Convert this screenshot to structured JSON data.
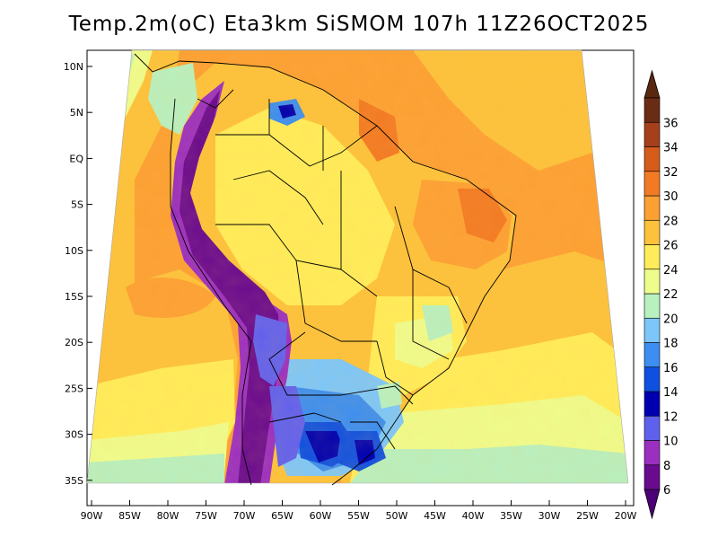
{
  "title": "Temp.2m(oC) Eta3km SiSMOM 107h 11Z26OCT2025",
  "map": {
    "projection": "lambert-like",
    "variable": "2 m air temperature",
    "units": "oC",
    "lon_range": [
      -90,
      -20
    ],
    "lat_range": [
      -38,
      11
    ],
    "lat_labels": [
      "10N",
      "5N",
      "EQ",
      "5S",
      "10S",
      "15S",
      "20S",
      "25S",
      "30S",
      "35S"
    ],
    "lon_labels": [
      "90W",
      "85W",
      "80W",
      "75W",
      "70W",
      "65W",
      "60W",
      "55W",
      "50W",
      "45W",
      "40W",
      "35W",
      "30W",
      "25W",
      "20W"
    ]
  },
  "colorbar": {
    "levels": [
      "6",
      "8",
      "10",
      "12",
      "14",
      "16",
      "18",
      "20",
      "22",
      "24",
      "26",
      "28",
      "30",
      "32",
      "34",
      "36"
    ],
    "colors": [
      "#6a0a8f",
      "#9a2fc0",
      "#6060ee",
      "#0000b0",
      "#1050e0",
      "#3c8ef0",
      "#7cc6fa",
      "#b8f0c0",
      "#eefc8c",
      "#ffec5a",
      "#fcc23c",
      "#fca034",
      "#f27a24",
      "#d65c1c",
      "#a6401c",
      "#6a2c14"
    ],
    "underflow_color": "#4c0078",
    "overflow_color": "#5a2810"
  }
}
